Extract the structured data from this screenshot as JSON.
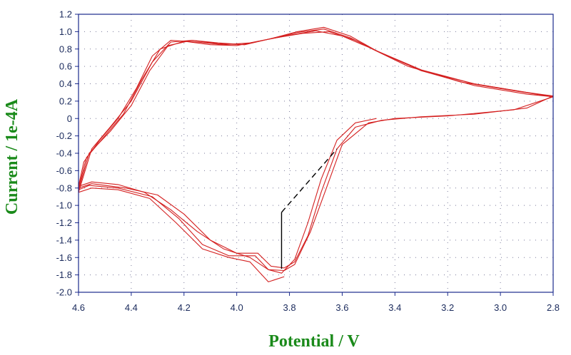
{
  "chart_data": {
    "type": "line",
    "title": "",
    "xlabel": "Potential / V",
    "ylabel": "Current / 1e-4A",
    "xlim": [
      4.6,
      2.8
    ],
    "ylim": [
      -2.0,
      1.2
    ],
    "x_reversed": true,
    "grid": "dotted",
    "legend": "none",
    "x_ticks": [
      "4.6",
      "4.4",
      "4.2",
      "4.0",
      "3.8",
      "3.6",
      "3.4",
      "3.2",
      "3.0",
      "2.8"
    ],
    "y_ticks": [
      "1.2",
      "1.0",
      "0.8",
      "0.6",
      "0.4",
      "0.2",
      "0",
      "-0.2",
      "-0.4",
      "-0.6",
      "-0.8",
      "-1.0",
      "-1.2",
      "-1.4",
      "-1.6",
      "-1.8",
      "-2.0"
    ],
    "series": [
      {
        "color": "#d42020",
        "points": [
          [
            3.47,
            0.0
          ],
          [
            3.55,
            -0.05
          ],
          [
            3.62,
            -0.25
          ],
          [
            3.68,
            -0.7
          ],
          [
            3.73,
            -1.2
          ],
          [
            3.78,
            -1.62
          ],
          [
            3.83,
            -1.78
          ],
          [
            3.88,
            -1.74
          ],
          [
            3.95,
            -1.6
          ],
          [
            4.05,
            -1.5
          ],
          [
            4.15,
            -1.3
          ],
          [
            4.25,
            -1.05
          ],
          [
            4.35,
            -0.85
          ],
          [
            4.45,
            -0.76
          ],
          [
            4.55,
            -0.73
          ],
          [
            4.6,
            -0.78
          ],
          [
            4.58,
            -0.5
          ],
          [
            4.52,
            -0.25
          ],
          [
            4.45,
            0.0
          ],
          [
            4.38,
            0.35
          ],
          [
            4.32,
            0.72
          ],
          [
            4.25,
            0.9
          ],
          [
            4.15,
            0.88
          ],
          [
            4.05,
            0.85
          ],
          [
            3.95,
            0.87
          ],
          [
            3.85,
            0.93
          ],
          [
            3.75,
            0.98
          ],
          [
            3.65,
            1.0
          ],
          [
            3.55,
            0.9
          ],
          [
            3.45,
            0.75
          ],
          [
            3.3,
            0.55
          ],
          [
            3.1,
            0.4
          ],
          [
            2.9,
            0.3
          ],
          [
            2.8,
            0.26
          ],
          [
            2.9,
            0.12
          ],
          [
            3.1,
            0.05
          ],
          [
            3.3,
            0.02
          ],
          [
            3.45,
            -0.02
          ],
          [
            3.55,
            -0.1
          ],
          [
            3.62,
            -0.35
          ],
          [
            3.68,
            -0.85
          ],
          [
            3.73,
            -1.35
          ],
          [
            3.78,
            -1.65
          ],
          [
            3.82,
            -1.72
          ]
        ]
      },
      {
        "color": "#d42020",
        "points": [
          [
            3.82,
            -1.72
          ],
          [
            3.87,
            -1.7
          ],
          [
            3.92,
            -1.55
          ],
          [
            4.0,
            -1.55
          ],
          [
            4.1,
            -1.4
          ],
          [
            4.2,
            -1.1
          ],
          [
            4.3,
            -0.88
          ],
          [
            4.42,
            -0.8
          ],
          [
            4.55,
            -0.75
          ],
          [
            4.6,
            -0.8
          ],
          [
            4.57,
            -0.45
          ],
          [
            4.5,
            -0.2
          ],
          [
            4.43,
            0.05
          ],
          [
            4.36,
            0.45
          ],
          [
            4.29,
            0.8
          ],
          [
            4.2,
            0.89
          ],
          [
            4.1,
            0.85
          ],
          [
            4.0,
            0.84
          ],
          [
            3.9,
            0.9
          ],
          [
            3.8,
            0.96
          ],
          [
            3.7,
            1.01
          ],
          [
            3.6,
            0.95
          ],
          [
            3.5,
            0.82
          ],
          [
            3.35,
            0.6
          ],
          [
            3.15,
            0.42
          ],
          [
            2.95,
            0.32
          ],
          [
            2.8,
            0.25
          ],
          [
            2.95,
            0.1
          ],
          [
            3.2,
            0.03
          ],
          [
            3.4,
            0.0
          ],
          [
            3.5,
            -0.05
          ],
          [
            3.6,
            -0.3
          ],
          [
            3.66,
            -0.8
          ],
          [
            3.72,
            -1.3
          ],
          [
            3.78,
            -1.68
          ],
          [
            3.82,
            -1.75
          ]
        ]
      },
      {
        "color": "#d42020",
        "points": [
          [
            3.82,
            -1.75
          ],
          [
            3.88,
            -1.74
          ],
          [
            3.93,
            -1.58
          ],
          [
            4.03,
            -1.58
          ],
          [
            4.13,
            -1.45
          ],
          [
            4.22,
            -1.15
          ],
          [
            4.32,
            -0.9
          ],
          [
            4.45,
            -0.8
          ],
          [
            4.56,
            -0.77
          ],
          [
            4.6,
            -0.82
          ],
          [
            4.56,
            -0.4
          ],
          [
            4.48,
            -0.15
          ],
          [
            4.4,
            0.15
          ],
          [
            4.33,
            0.55
          ],
          [
            4.26,
            0.84
          ],
          [
            4.17,
            0.9
          ],
          [
            4.07,
            0.86
          ],
          [
            3.97,
            0.85
          ],
          [
            3.87,
            0.92
          ],
          [
            3.77,
            0.99
          ],
          [
            3.67,
            1.03
          ],
          [
            3.57,
            0.93
          ],
          [
            3.47,
            0.78
          ],
          [
            3.3,
            0.56
          ],
          [
            3.1,
            0.4
          ],
          [
            2.9,
            0.3
          ],
          [
            2.8,
            0.25
          ]
        ]
      },
      {
        "color": "#d42020",
        "points": [
          [
            2.8,
            0.25
          ],
          [
            2.9,
            0.28
          ],
          [
            3.1,
            0.38
          ],
          [
            3.3,
            0.55
          ],
          [
            3.47,
            0.78
          ],
          [
            3.57,
            0.95
          ],
          [
            3.67,
            1.05
          ],
          [
            3.77,
            1.0
          ],
          [
            3.87,
            0.92
          ],
          [
            3.97,
            0.85
          ],
          [
            4.07,
            0.87
          ],
          [
            4.17,
            0.9
          ],
          [
            4.25,
            0.88
          ],
          [
            4.32,
            0.65
          ],
          [
            4.4,
            0.2
          ],
          [
            4.48,
            -0.1
          ],
          [
            4.55,
            -0.35
          ],
          [
            4.6,
            -0.85
          ],
          [
            4.55,
            -0.8
          ],
          [
            4.45,
            -0.82
          ],
          [
            4.33,
            -0.92
          ],
          [
            4.23,
            -1.2
          ],
          [
            4.13,
            -1.5
          ],
          [
            4.03,
            -1.6
          ],
          [
            3.95,
            -1.65
          ],
          [
            3.88,
            -1.88
          ],
          [
            3.82,
            -1.82
          ]
        ]
      }
    ],
    "annotation_segments": [
      {
        "from": [
          3.83,
          -1.73
        ],
        "to": [
          3.83,
          -1.08
        ],
        "style": "solid",
        "color": "#000000"
      },
      {
        "from": [
          3.83,
          -1.08
        ],
        "to": [
          3.62,
          -0.35
        ],
        "style": "dashed",
        "color": "#000000"
      }
    ]
  }
}
